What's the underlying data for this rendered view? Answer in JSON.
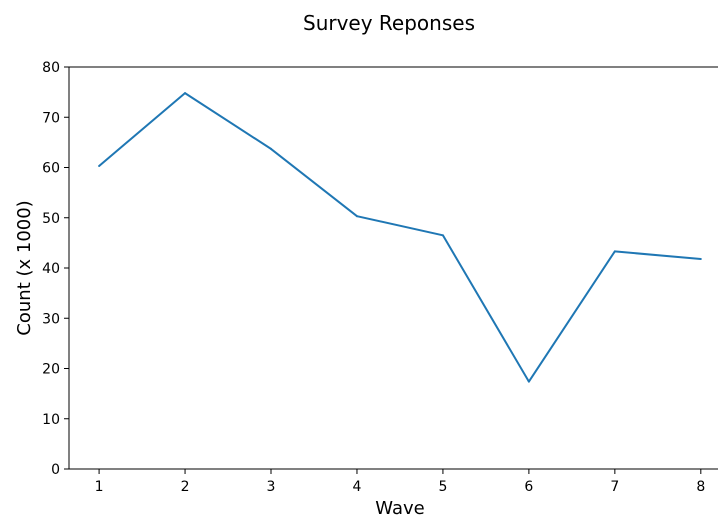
{
  "chart_data": {
    "type": "line",
    "title": "Survey Reponses",
    "xlabel": "Wave",
    "ylabel": "Count (x 1000)",
    "x": [
      1,
      2,
      3,
      4,
      5,
      6,
      7,
      8
    ],
    "xticks": [
      "1",
      "2",
      "3",
      "4",
      "5",
      "6",
      "7",
      "8"
    ],
    "yticks": [
      "0",
      "10",
      "20",
      "30",
      "40",
      "50",
      "60",
      "70",
      "80"
    ],
    "ylim": [
      0,
      80
    ],
    "xlim": [
      0.65,
      8.2
    ],
    "series": [
      {
        "values": [
          60.3,
          74.8,
          63.7,
          50.3,
          46.5,
          17.4,
          43.3,
          41.8
        ],
        "color": "#1f77b4"
      }
    ],
    "grid": false,
    "legend": "none"
  }
}
